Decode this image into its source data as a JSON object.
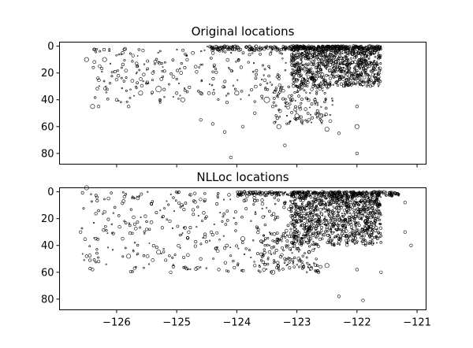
{
  "chart_data": [
    {
      "type": "scatter",
      "title": "Original locations",
      "xlim": [
        -126.95,
        -120.85
      ],
      "ylim": [
        88,
        -3
      ],
      "yticks": [
        0,
        20,
        40,
        60,
        80
      ],
      "xticks": [
        -126,
        -125,
        -124,
        -123,
        -122,
        -121
      ],
      "x_tick_labels_shown": false,
      "points": [
        {
          "x": -126.5,
          "y": 10,
          "size": 3
        },
        {
          "x": -126.2,
          "y": 10,
          "size": 3
        },
        {
          "x": -125.9,
          "y": 5,
          "size": 2
        },
        {
          "x": -126.4,
          "y": 45,
          "size": 3
        },
        {
          "x": -126.3,
          "y": 45,
          "size": 2
        },
        {
          "x": -126.0,
          "y": 40,
          "size": 2
        },
        {
          "x": -125.8,
          "y": 45,
          "size": 2
        },
        {
          "x": -125.6,
          "y": 35,
          "size": 3
        },
        {
          "x": -125.3,
          "y": 32,
          "size": 4
        },
        {
          "x": -125.0,
          "y": 35,
          "size": 2
        },
        {
          "x": -124.9,
          "y": 40,
          "size": 3
        },
        {
          "x": -124.6,
          "y": 35,
          "size": 2
        },
        {
          "x": -124.6,
          "y": 55,
          "size": 2
        },
        {
          "x": -124.4,
          "y": 58,
          "size": 2
        },
        {
          "x": -124.0,
          "y": 35,
          "size": 3
        },
        {
          "x": -123.9,
          "y": 60,
          "size": 2
        },
        {
          "x": -123.7,
          "y": 50,
          "size": 2
        },
        {
          "x": -123.5,
          "y": 40,
          "size": 4
        },
        {
          "x": -123.4,
          "y": 45,
          "size": 2
        },
        {
          "x": -123.3,
          "y": 60,
          "size": 3
        },
        {
          "x": -123.1,
          "y": 40,
          "size": 2
        },
        {
          "x": -123.0,
          "y": 52,
          "size": 3
        },
        {
          "x": -122.8,
          "y": 55,
          "size": 2
        },
        {
          "x": -122.6,
          "y": 52,
          "size": 3
        },
        {
          "x": -122.5,
          "y": 62,
          "size": 3
        },
        {
          "x": -122.3,
          "y": 65,
          "size": 2
        },
        {
          "x": -122.0,
          "y": 60,
          "size": 3
        },
        {
          "x": -122.7,
          "y": 40,
          "size": 2
        },
        {
          "x": -122.0,
          "y": 45,
          "size": 2
        },
        {
          "x": -121.9,
          "y": 28,
          "size": 3
        },
        {
          "x": -124.1,
          "y": 83,
          "size": 2
        },
        {
          "x": -122.0,
          "y": 80,
          "size": 2
        },
        {
          "x": -123.2,
          "y": 74,
          "size": 2
        },
        {
          "x": -124.2,
          "y": 64,
          "size": 2
        },
        {
          "x": -126.0,
          "y": 25,
          "size": 2
        },
        {
          "x": -125.4,
          "y": 20,
          "size": 2
        }
      ]
    },
    {
      "type": "scatter",
      "title": "NLLoc locations",
      "xlim": [
        -126.95,
        -120.85
      ],
      "ylim": [
        88,
        -3
      ],
      "yticks": [
        0,
        20,
        40,
        60,
        80
      ],
      "xticks": [
        -126,
        -125,
        -124,
        -123,
        -122,
        -121
      ],
      "x_tick_labels_shown": true,
      "x_tick_labels": [
        "−126",
        "−125",
        "−124",
        "−123",
        "−122",
        "−121"
      ],
      "points": [
        {
          "x": -126.5,
          "y": -3,
          "size": 3
        },
        {
          "x": -126.6,
          "y": 30,
          "size": 2
        },
        {
          "x": -126.5,
          "y": 48,
          "size": 2
        },
        {
          "x": -126.4,
          "y": 58,
          "size": 2
        },
        {
          "x": -126.3,
          "y": 52,
          "size": 2
        },
        {
          "x": -126.2,
          "y": 15,
          "size": 2
        },
        {
          "x": -125.9,
          "y": 35,
          "size": 2
        },
        {
          "x": -125.8,
          "y": 48,
          "size": 3
        },
        {
          "x": -125.7,
          "y": 57,
          "size": 2
        },
        {
          "x": -125.5,
          "y": 28,
          "size": 2
        },
        {
          "x": -125.3,
          "y": 45,
          "size": 3
        },
        {
          "x": -125.1,
          "y": 60,
          "size": 2
        },
        {
          "x": -124.8,
          "y": 30,
          "size": 2
        },
        {
          "x": -124.6,
          "y": 50,
          "size": 2
        },
        {
          "x": -124.3,
          "y": 58,
          "size": 2
        },
        {
          "x": -124.2,
          "y": 42,
          "size": 2
        },
        {
          "x": -123.9,
          "y": 35,
          "size": 3
        },
        {
          "x": -123.7,
          "y": 55,
          "size": 2
        },
        {
          "x": -123.4,
          "y": 60,
          "size": 3
        },
        {
          "x": -123.2,
          "y": 50,
          "size": 2
        },
        {
          "x": -122.8,
          "y": 45,
          "size": 2
        },
        {
          "x": -122.5,
          "y": 55,
          "size": 3
        },
        {
          "x": -122.3,
          "y": 78,
          "size": 2
        },
        {
          "x": -121.9,
          "y": 81,
          "size": 2
        },
        {
          "x": -122.0,
          "y": 58,
          "size": 2
        },
        {
          "x": -121.6,
          "y": 60,
          "size": 2
        },
        {
          "x": -121.2,
          "y": 8,
          "size": 2
        },
        {
          "x": -121.1,
          "y": 40,
          "size": 2
        },
        {
          "x": -121.2,
          "y": 30,
          "size": 2
        },
        {
          "x": -124.4,
          "y": 32,
          "size": 2
        }
      ]
    }
  ]
}
